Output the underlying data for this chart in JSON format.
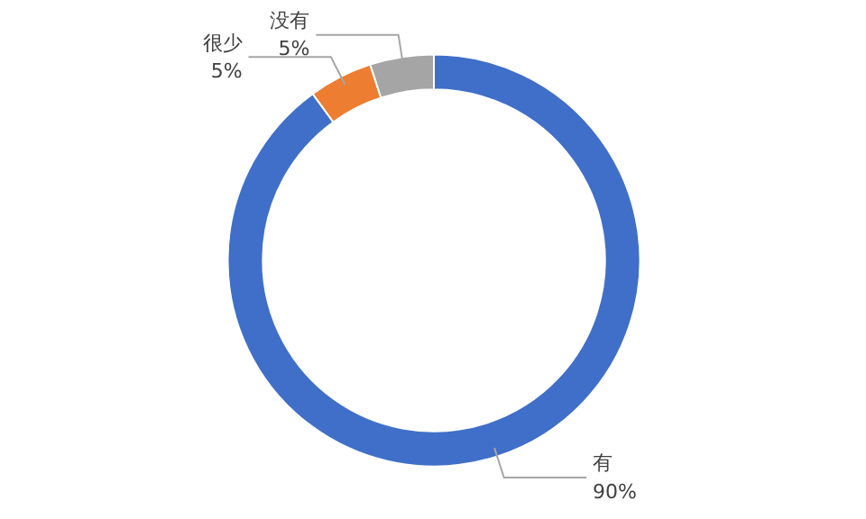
{
  "chart_data": {
    "type": "donut",
    "categories": [
      "有",
      "很少",
      "没有"
    ],
    "values": [
      90,
      5,
      5
    ],
    "colors": [
      "#3f6fc9",
      "#ed7d31",
      "#a5a5a5"
    ],
    "value_labels": [
      "90%",
      "5%",
      "5%"
    ],
    "legend": false
  }
}
